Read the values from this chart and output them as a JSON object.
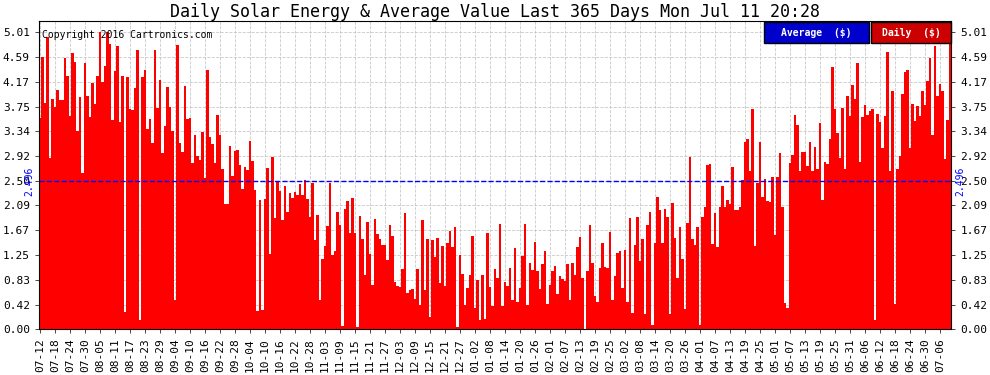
{
  "title": "Daily Solar Energy & Average Value Last 365 Days Mon Jul 11 20:28",
  "copyright": "Copyright 2016 Cartronics.com",
  "bar_color": "#FF0000",
  "average_color": "#0000FF",
  "average_value": 2.496,
  "yticks": [
    0.0,
    0.42,
    0.83,
    1.25,
    1.67,
    2.09,
    2.5,
    2.92,
    3.34,
    3.75,
    4.17,
    4.59,
    5.01
  ],
  "ylim": [
    0.0,
    5.2
  ],
  "background_color": "#FFFFFF",
  "grid_color": "#AAAAAA",
  "legend_avg_bg": "#0000CC",
  "legend_daily_bg": "#CC0000",
  "legend_text": "Average  ($)",
  "legend_text2": "Daily  ($)",
  "n_bars": 365,
  "xlabel_rotation": 90,
  "title_fontsize": 12,
  "tick_fontsize": 8,
  "avg_label": "2.496",
  "xtick_labels": [
    "07-12",
    "07-18",
    "07-24",
    "07-30",
    "08-05",
    "08-11",
    "08-17",
    "08-23",
    "08-29",
    "09-04",
    "09-10",
    "09-16",
    "09-22",
    "09-28",
    "10-04",
    "10-10",
    "10-16",
    "10-22",
    "10-28",
    "11-03",
    "11-09",
    "11-15",
    "11-21",
    "11-27",
    "12-03",
    "12-09",
    "12-15",
    "12-21",
    "12-27",
    "01-02",
    "01-08",
    "01-14",
    "01-20",
    "01-26",
    "02-01",
    "02-07",
    "02-13",
    "02-19",
    "02-25",
    "03-02",
    "03-08",
    "03-14",
    "03-20",
    "03-26",
    "04-01",
    "04-07",
    "04-13",
    "04-19",
    "04-25",
    "05-01",
    "05-07",
    "05-13",
    "05-19",
    "05-25",
    "05-31",
    "06-06",
    "06-12",
    "06-18",
    "06-24",
    "06-30",
    "07-06"
  ],
  "xtick_positions": [
    0,
    6,
    12,
    18,
    24,
    30,
    36,
    42,
    48,
    54,
    60,
    66,
    72,
    78,
    84,
    90,
    96,
    102,
    108,
    114,
    120,
    126,
    132,
    138,
    144,
    150,
    156,
    162,
    168,
    174,
    180,
    186,
    192,
    198,
    204,
    210,
    216,
    222,
    228,
    234,
    240,
    246,
    252,
    258,
    264,
    270,
    276,
    282,
    288,
    294,
    300,
    306,
    312,
    318,
    324,
    330,
    336,
    342,
    348,
    354,
    360
  ]
}
